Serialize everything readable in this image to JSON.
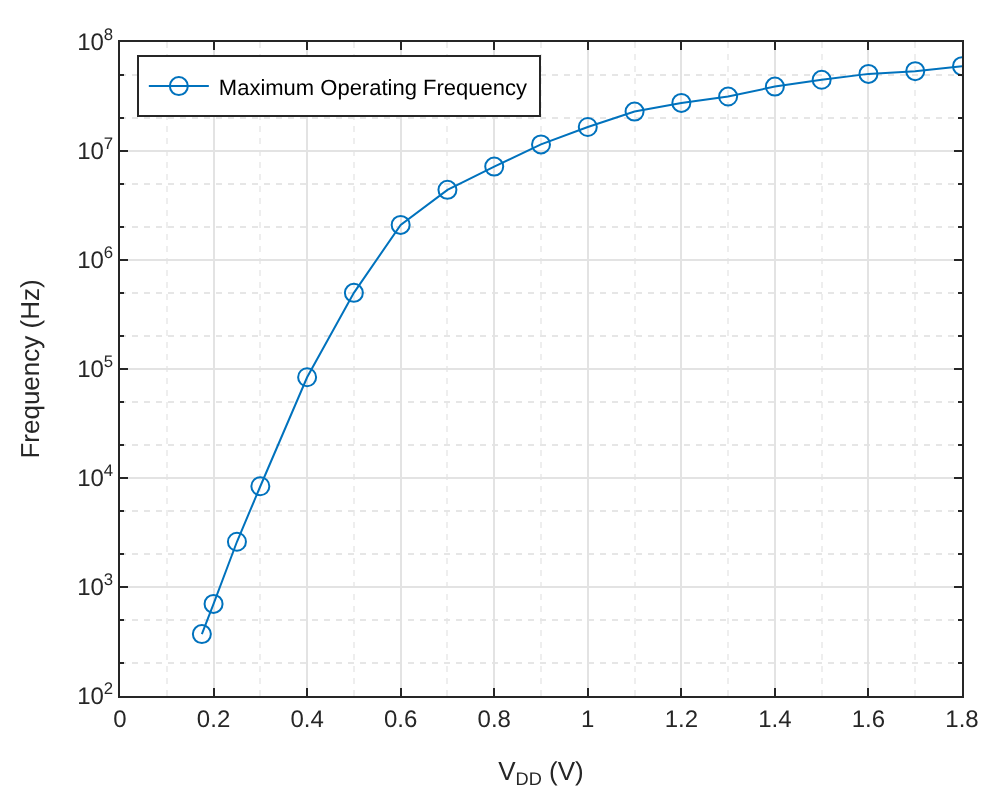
{
  "chart_data": {
    "type": "line",
    "xlabel": "V$_{DD}$ (V)",
    "ylabel": "Frequency (Hz)",
    "log": "y",
    "grid": true,
    "legend": "top left",
    "marker": "circle",
    "line_style": "solid",
    "x": [
      0.175,
      0.2,
      0.25,
      0.3,
      0.4,
      0.5,
      0.6,
      0.7,
      0.8,
      0.9,
      1.0,
      1.1,
      1.2,
      1.3,
      1.4,
      1.5,
      1.6,
      1.7,
      1.8
    ],
    "series": [
      {
        "name": "Maximum Operating Frequency",
        "color": "#0072bd",
        "values": [
          370,
          700,
          2600,
          8400,
          84000,
          500000,
          2100000,
          4400000,
          7200000,
          11500000,
          16600000,
          23000000,
          27600000,
          31600000,
          39000000,
          45000000,
          51000000,
          54000000,
          60000000
        ]
      }
    ],
    "xlim": [
      0,
      1.8
    ],
    "xticks": [
      0,
      0.2,
      0.4,
      0.6,
      0.8,
      1,
      1.2,
      1.4,
      1.6,
      1.8
    ],
    "ylim": [
      100,
      100000000
    ],
    "yticks": [
      {
        "value": 100,
        "label": "10$^{2}$"
      },
      {
        "value": 1000,
        "label": "10$^{3}$"
      },
      {
        "value": 10000,
        "label": "10$^{4}$"
      },
      {
        "value": 100000,
        "label": "10$^{5}$"
      },
      {
        "value": 1000000,
        "label": "10$^{6}$"
      },
      {
        "value": 10000000,
        "label": "10$^{7}$"
      },
      {
        "value": 100000000,
        "label": "10$^{8}$"
      }
    ]
  }
}
